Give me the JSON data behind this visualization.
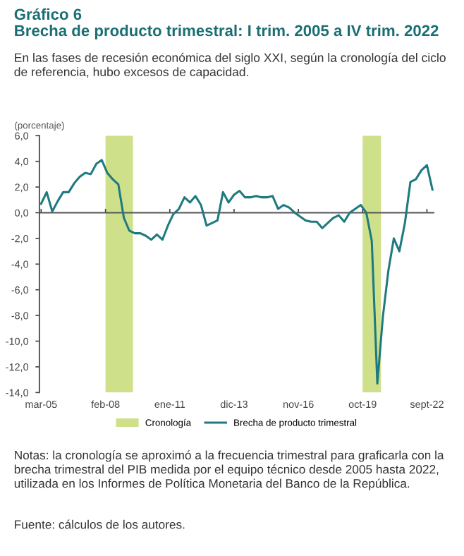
{
  "chart_data": {
    "type": "line",
    "title": "Gráfico 6\nBrecha de producto trimestral: I trim. 2005 a IV trim. 2022",
    "subtitle": "En las fases de recesión económica del siglo XXI, según la cronología del ciclo de referencia, hubo excesos de capacidad.",
    "ylabel": "(porcentaje)",
    "x": [
      "2005-03",
      "2005-06",
      "2005-09",
      "2005-12",
      "2006-03",
      "2006-06",
      "2006-09",
      "2006-12",
      "2007-03",
      "2007-06",
      "2007-09",
      "2007-12",
      "2008-03",
      "2008-06",
      "2008-09",
      "2008-12",
      "2009-03",
      "2009-06",
      "2009-09",
      "2009-12",
      "2010-03",
      "2010-06",
      "2010-09",
      "2010-12",
      "2011-03",
      "2011-06",
      "2011-09",
      "2011-12",
      "2012-03",
      "2012-06",
      "2012-09",
      "2012-12",
      "2013-03",
      "2013-06",
      "2013-09",
      "2013-12",
      "2014-03",
      "2014-06",
      "2014-09",
      "2014-12",
      "2015-03",
      "2015-06",
      "2015-09",
      "2015-12",
      "2016-03",
      "2016-06",
      "2016-09",
      "2016-12",
      "2017-03",
      "2017-06",
      "2017-09",
      "2017-12",
      "2018-03",
      "2018-06",
      "2018-09",
      "2018-12",
      "2019-03",
      "2019-06",
      "2019-09",
      "2019-12",
      "2020-03",
      "2020-06",
      "2020-09",
      "2020-12",
      "2021-03",
      "2021-06",
      "2021-09",
      "2021-12",
      "2022-03",
      "2022-06",
      "2022-09",
      "2022-12"
    ],
    "series": [
      {
        "name": "Brecha de producto trimestral",
        "color": "#1f7a80",
        "values": [
          0.7,
          1.6,
          0.1,
          0.9,
          1.6,
          1.6,
          2.3,
          2.8,
          3.1,
          3.0,
          3.8,
          4.1,
          3.1,
          2.6,
          2.2,
          -0.4,
          -1.4,
          -1.6,
          -1.6,
          -1.8,
          -2.1,
          -1.7,
          -2.1,
          -1.0,
          -0.1,
          0.3,
          1.2,
          0.8,
          1.3,
          0.6,
          -1.0,
          -0.8,
          -0.6,
          1.6,
          0.8,
          1.4,
          1.7,
          1.2,
          1.2,
          1.3,
          1.2,
          1.2,
          1.3,
          0.3,
          0.6,
          0.4,
          0.0,
          -0.3,
          -0.6,
          -0.7,
          -0.7,
          -1.2,
          -0.8,
          -0.4,
          -0.2,
          -0.7,
          0.0,
          0.3,
          0.6,
          0.0,
          -2.2,
          -13.3,
          -8.1,
          -4.5,
          -2.0,
          -3.0,
          -0.8,
          2.4,
          2.6,
          3.3,
          3.7,
          1.8
        ]
      }
    ],
    "bands": [
      {
        "axis": "x",
        "from": "2008-02",
        "to": "2009-05",
        "label": "Cronología",
        "color": "#cfe08a"
      },
      {
        "axis": "x",
        "from": "2019-10",
        "to": "2020-08",
        "color": "#cfe08a"
      }
    ],
    "xlim": [
      "2005-02",
      "2023-01"
    ],
    "xticks": [
      {
        "value": "2005-03",
        "label": "mar-05"
      },
      {
        "value": "2008-02",
        "label": "feb-08"
      },
      {
        "value": "2011-01",
        "label": "ene-11"
      },
      {
        "value": "2013-12",
        "label": "dic-13"
      },
      {
        "value": "2016-11",
        "label": "nov-16"
      },
      {
        "value": "2019-10",
        "label": "oct-19"
      },
      {
        "value": "2022-09",
        "label": "sept-22"
      }
    ],
    "ylim": [
      -14,
      6
    ],
    "yticks": [
      {
        "value": 6,
        "label": "6,0"
      },
      {
        "value": 4,
        "label": "4,0"
      },
      {
        "value": 2,
        "label": "2,0"
      },
      {
        "value": 0,
        "label": "0,0"
      },
      {
        "value": -2,
        "label": "-2,0"
      },
      {
        "value": -4,
        "label": "-4,0"
      },
      {
        "value": -6,
        "label": "-6,0"
      },
      {
        "value": -8,
        "label": "-8,0"
      },
      {
        "value": -10,
        "label": "-10,0"
      },
      {
        "value": -12,
        "label": "-12,0"
      },
      {
        "value": -14,
        "label": "-14,0"
      }
    ],
    "ref_lines": [
      {
        "axis": "y",
        "value": 0,
        "color": "#555555"
      }
    ],
    "grid": false,
    "legend": "bottom",
    "marker": "none",
    "line_style": "solid",
    "annotations": [
      "Notas: la cronología se aproximó a la frecuencia trimestral para graficarla con la brecha trimestral del PIB medida por el equipo técnico desde 2005 hasta 2022, utilizada en los Informes de Política Monetaria del Banco de la República.",
      "Fuente: cálculos de los autores."
    ]
  }
}
